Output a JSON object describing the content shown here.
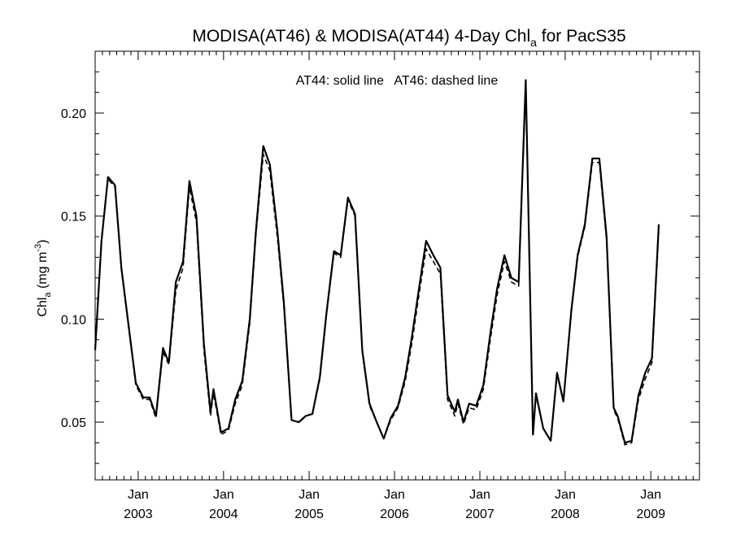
{
  "chart_data": {
    "type": "line",
    "title": {
      "main": "MODISA(AT46) & MODISA(AT44) 4-Day Chl",
      "sub": "a",
      "tail": " for PacS35"
    },
    "annotation": "AT44: solid line   AT46: dashed line",
    "ylabel": {
      "main": "Chl",
      "sub": "a",
      "unit_open": " (mg m",
      "sup": "-3",
      "unit_close": ")"
    },
    "xlim": [
      "2002-07-01",
      "2009-07-28"
    ],
    "ylim": [
      0.022,
      0.23
    ],
    "yticks": [
      0.05,
      0.1,
      0.15,
      0.2
    ],
    "ytick_labels": [
      "0.05",
      "0.10",
      "0.15",
      "0.20"
    ],
    "xticks": [
      {
        "date": "2003-01-01",
        "month": "Jan",
        "year": "2003"
      },
      {
        "date": "2004-01-01",
        "month": "Jan",
        "year": "2004"
      },
      {
        "date": "2005-01-01",
        "month": "Jan",
        "year": "2005"
      },
      {
        "date": "2006-01-01",
        "month": "Jan",
        "year": "2006"
      },
      {
        "date": "2007-01-01",
        "month": "Jan",
        "year": "2007"
      },
      {
        "date": "2008-01-01",
        "month": "Jan",
        "year": "2008"
      },
      {
        "date": "2009-01-01",
        "month": "Jan",
        "year": "2009"
      }
    ],
    "series": [
      {
        "name": "AT44",
        "style": "solid",
        "color": "#000000",
        "points": [
          [
            "2002-07-01",
            0.085
          ],
          [
            "2002-07-28",
            0.138
          ],
          [
            "2002-08-25",
            0.169
          ],
          [
            "2002-09-24",
            0.165
          ],
          [
            "2002-10-21",
            0.125
          ],
          [
            "2002-11-23",
            0.095
          ],
          [
            "2002-12-22",
            0.069
          ],
          [
            "2003-01-23",
            0.062
          ],
          [
            "2003-02-19",
            0.062
          ],
          [
            "2003-03-18",
            0.053
          ],
          [
            "2003-04-17",
            0.086
          ],
          [
            "2003-05-12",
            0.079
          ],
          [
            "2003-06-11",
            0.118
          ],
          [
            "2003-07-12",
            0.128
          ],
          [
            "2003-08-08",
            0.167
          ],
          [
            "2003-09-07",
            0.15
          ],
          [
            "2003-10-09",
            0.088
          ],
          [
            "2003-11-06",
            0.055
          ],
          [
            "2003-11-19",
            0.066
          ],
          [
            "2003-12-21",
            0.045
          ],
          [
            "2004-01-22",
            0.047
          ],
          [
            "2004-02-20",
            0.061
          ],
          [
            "2004-03-21",
            0.07
          ],
          [
            "2004-04-22",
            0.1
          ],
          [
            "2004-05-18",
            0.142
          ],
          [
            "2004-06-19",
            0.184
          ],
          [
            "2004-07-17",
            0.175
          ],
          [
            "2004-08-18",
            0.143
          ],
          [
            "2004-09-15",
            0.108
          ],
          [
            "2004-10-18",
            0.051
          ],
          [
            "2004-11-18",
            0.05
          ],
          [
            "2004-12-17",
            0.053
          ],
          [
            "2005-01-15",
            0.054
          ],
          [
            "2005-02-16",
            0.072
          ],
          [
            "2005-03-16",
            0.103
          ],
          [
            "2005-04-17",
            0.133
          ],
          [
            "2005-05-16",
            0.131
          ],
          [
            "2005-06-16",
            0.159
          ],
          [
            "2005-07-16",
            0.151
          ],
          [
            "2005-08-16",
            0.085
          ],
          [
            "2005-09-16",
            0.059
          ],
          [
            "2005-10-17",
            0.05
          ],
          [
            "2005-11-16",
            0.042
          ],
          [
            "2005-12-16",
            0.052
          ],
          [
            "2006-01-16",
            0.058
          ],
          [
            "2006-02-16",
            0.072
          ],
          [
            "2006-03-16",
            0.091
          ],
          [
            "2006-04-16",
            0.115
          ],
          [
            "2006-05-16",
            0.138
          ],
          [
            "2006-06-16",
            0.131
          ],
          [
            "2006-07-16",
            0.125
          ],
          [
            "2006-08-16",
            0.063
          ],
          [
            "2006-09-16",
            0.055
          ],
          [
            "2006-09-29",
            0.061
          ],
          [
            "2006-10-23",
            0.05
          ],
          [
            "2006-11-16",
            0.059
          ],
          [
            "2006-12-16",
            0.058
          ],
          [
            "2007-01-16",
            0.068
          ],
          [
            "2007-02-16",
            0.094
          ],
          [
            "2007-03-16",
            0.115
          ],
          [
            "2007-04-16",
            0.131
          ],
          [
            "2007-05-16",
            0.12
          ],
          [
            "2007-06-16",
            0.118
          ],
          [
            "2007-07-16",
            0.216
          ],
          [
            "2007-08-16",
            0.044
          ],
          [
            "2007-08-29",
            0.064
          ],
          [
            "2007-09-29",
            0.047
          ],
          [
            "2007-10-31",
            0.041
          ],
          [
            "2007-11-27",
            0.074
          ],
          [
            "2007-12-24",
            0.06
          ],
          [
            "2008-01-27",
            0.104
          ],
          [
            "2008-02-23",
            0.131
          ],
          [
            "2008-03-25",
            0.146
          ],
          [
            "2008-04-26",
            0.178
          ],
          [
            "2008-05-26",
            0.178
          ],
          [
            "2008-06-26",
            0.14
          ],
          [
            "2008-07-26",
            0.057
          ],
          [
            "2008-08-12",
            0.053
          ],
          [
            "2008-09-12",
            0.04
          ],
          [
            "2008-10-11",
            0.041
          ],
          [
            "2008-11-09",
            0.063
          ],
          [
            "2008-12-08",
            0.074
          ],
          [
            "2009-01-06",
            0.081
          ],
          [
            "2009-02-04",
            0.146
          ]
        ]
      },
      {
        "name": "AT46",
        "style": "dashed",
        "color": "#000000",
        "points": [
          [
            "2002-07-01",
            0.086
          ],
          [
            "2002-07-28",
            0.139
          ],
          [
            "2002-08-25",
            0.168
          ],
          [
            "2002-09-24",
            0.164
          ],
          [
            "2002-10-21",
            0.124
          ],
          [
            "2002-11-23",
            0.094
          ],
          [
            "2002-12-22",
            0.068
          ],
          [
            "2003-01-23",
            0.061
          ],
          [
            "2003-02-19",
            0.061
          ],
          [
            "2003-03-18",
            0.052
          ],
          [
            "2003-04-17",
            0.084
          ],
          [
            "2003-05-12",
            0.078
          ],
          [
            "2003-06-11",
            0.114
          ],
          [
            "2003-07-12",
            0.125
          ],
          [
            "2003-08-08",
            0.164
          ],
          [
            "2003-09-07",
            0.147
          ],
          [
            "2003-10-09",
            0.085
          ],
          [
            "2003-11-06",
            0.053
          ],
          [
            "2003-11-19",
            0.064
          ],
          [
            "2003-12-21",
            0.044
          ],
          [
            "2004-01-22",
            0.046
          ],
          [
            "2004-02-20",
            0.059
          ],
          [
            "2004-03-21",
            0.068
          ],
          [
            "2004-04-22",
            0.098
          ],
          [
            "2004-05-18",
            0.14
          ],
          [
            "2004-06-19",
            0.18
          ],
          [
            "2004-07-17",
            0.172
          ],
          [
            "2004-08-18",
            0.14
          ],
          [
            "2004-09-15",
            0.106
          ],
          [
            "2004-10-18",
            0.051
          ],
          [
            "2004-11-18",
            0.05
          ],
          [
            "2004-12-17",
            0.053
          ],
          [
            "2005-01-15",
            0.054
          ],
          [
            "2005-02-16",
            0.071
          ],
          [
            "2005-03-16",
            0.102
          ],
          [
            "2005-04-17",
            0.132
          ],
          [
            "2005-05-16",
            0.13
          ],
          [
            "2005-06-16",
            0.158
          ],
          [
            "2005-07-16",
            0.15
          ],
          [
            "2005-08-16",
            0.084
          ],
          [
            "2005-09-16",
            0.058
          ],
          [
            "2005-10-17",
            0.05
          ],
          [
            "2005-11-16",
            0.042
          ],
          [
            "2005-12-16",
            0.051
          ],
          [
            "2006-01-16",
            0.057
          ],
          [
            "2006-02-16",
            0.07
          ],
          [
            "2006-03-16",
            0.088
          ],
          [
            "2006-04-16",
            0.112
          ],
          [
            "2006-05-16",
            0.134
          ],
          [
            "2006-06-16",
            0.128
          ],
          [
            "2006-07-16",
            0.122
          ],
          [
            "2006-08-16",
            0.061
          ],
          [
            "2006-09-16",
            0.053
          ],
          [
            "2006-09-29",
            0.059
          ],
          [
            "2006-10-23",
            0.049
          ],
          [
            "2006-11-16",
            0.057
          ],
          [
            "2006-12-16",
            0.056
          ],
          [
            "2007-01-16",
            0.066
          ],
          [
            "2007-02-16",
            0.091
          ],
          [
            "2007-03-16",
            0.112
          ],
          [
            "2007-04-16",
            0.128
          ],
          [
            "2007-05-16",
            0.118
          ],
          [
            "2007-06-16",
            0.116
          ],
          [
            "2007-07-16",
            0.215
          ],
          [
            "2007-08-16",
            0.044
          ],
          [
            "2007-08-29",
            0.063
          ],
          [
            "2007-09-29",
            0.047
          ],
          [
            "2007-10-31",
            0.041
          ],
          [
            "2007-11-27",
            0.073
          ],
          [
            "2007-12-24",
            0.06
          ],
          [
            "2008-01-27",
            0.103
          ],
          [
            "2008-02-23",
            0.13
          ],
          [
            "2008-03-25",
            0.145
          ],
          [
            "2008-04-26",
            0.176
          ],
          [
            "2008-05-26",
            0.176
          ],
          [
            "2008-06-26",
            0.138
          ],
          [
            "2008-07-26",
            0.056
          ],
          [
            "2008-08-12",
            0.052
          ],
          [
            "2008-09-12",
            0.039
          ],
          [
            "2008-10-11",
            0.04
          ],
          [
            "2008-11-09",
            0.061
          ],
          [
            "2008-12-08",
            0.071
          ],
          [
            "2009-01-06",
            0.079
          ],
          [
            "2009-02-04",
            0.143
          ]
        ]
      }
    ]
  }
}
